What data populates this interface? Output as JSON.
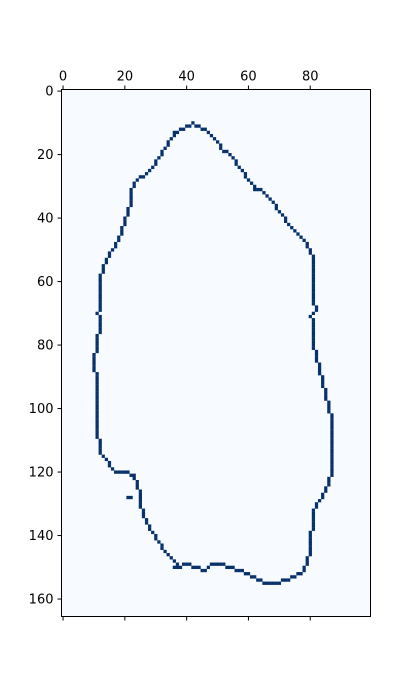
{
  "chart_data": {
    "type": "heatmap",
    "title": "",
    "xlabel": "",
    "ylabel": "",
    "x_axis_position": "top",
    "xlim": [
      -0.5,
      99.5
    ],
    "ylim": [
      165.5,
      -0.5
    ],
    "x_ticks": [
      0,
      20,
      40,
      60,
      80
    ],
    "x_tick_labels": [
      "0",
      "20",
      "40",
      "60",
      "80"
    ],
    "y_ticks": [
      0,
      20,
      40,
      60,
      80,
      100,
      120,
      140,
      160
    ],
    "y_tick_labels": [
      "0",
      "20",
      "40",
      "60",
      "80",
      "100",
      "120",
      "140",
      "160"
    ],
    "grid": false,
    "colormap": "Blues",
    "background_color": "#f7fbff",
    "contour_color": "#08306b",
    "value_range": [
      0,
      1
    ],
    "description_of_values": "binary mask: 1 on the closed outline, 0 elsewhere",
    "contour": [
      [
        42,
        10
      ],
      [
        39,
        12
      ],
      [
        36,
        13
      ],
      [
        35,
        15
      ],
      [
        33,
        18
      ],
      [
        31,
        21
      ],
      [
        29,
        24
      ],
      [
        27,
        26
      ],
      [
        25,
        27
      ],
      [
        23,
        29
      ],
      [
        22,
        32
      ],
      [
        22,
        35
      ],
      [
        21,
        38
      ],
      [
        20,
        41
      ],
      [
        19,
        44
      ],
      [
        18,
        47
      ],
      [
        16,
        50
      ],
      [
        14,
        53
      ],
      [
        13,
        56
      ],
      [
        12,
        59
      ],
      [
        12,
        62
      ],
      [
        12,
        65
      ],
      [
        12,
        68
      ],
      [
        11,
        70
      ],
      [
        12,
        72
      ],
      [
        12,
        75
      ],
      [
        11,
        78
      ],
      [
        11,
        81
      ],
      [
        10,
        84
      ],
      [
        10,
        87
      ],
      [
        11,
        90
      ],
      [
        11,
        94
      ],
      [
        11,
        98
      ],
      [
        11,
        102
      ],
      [
        11,
        105
      ],
      [
        11,
        108
      ],
      [
        12,
        111
      ],
      [
        12,
        114
      ],
      [
        14,
        116
      ],
      [
        16,
        119
      ],
      [
        18,
        120
      ],
      [
        21,
        120
      ],
      [
        23,
        121
      ],
      [
        24,
        124
      ],
      [
        25,
        127
      ],
      [
        25,
        130
      ],
      [
        26,
        133
      ],
      [
        27,
        136
      ],
      [
        29,
        139
      ],
      [
        31,
        142
      ],
      [
        33,
        145
      ],
      [
        36,
        148
      ],
      [
        37,
        150
      ],
      [
        40,
        149
      ],
      [
        44,
        150
      ],
      [
        46,
        151
      ],
      [
        48,
        149
      ],
      [
        51,
        149
      ],
      [
        54,
        150
      ],
      [
        57,
        151
      ],
      [
        60,
        152
      ],
      [
        63,
        154
      ],
      [
        66,
        155
      ],
      [
        69,
        155
      ],
      [
        72,
        154
      ],
      [
        75,
        153
      ],
      [
        78,
        151
      ],
      [
        79,
        148
      ],
      [
        80,
        144
      ],
      [
        80,
        140
      ],
      [
        81,
        136
      ],
      [
        81,
        132
      ],
      [
        83,
        129
      ],
      [
        85,
        126
      ],
      [
        86,
        123
      ],
      [
        87,
        120
      ],
      [
        87,
        116
      ],
      [
        87,
        112
      ],
      [
        87,
        108
      ],
      [
        87,
        104
      ],
      [
        86,
        100
      ],
      [
        85,
        96
      ],
      [
        84,
        92
      ],
      [
        83,
        88
      ],
      [
        82,
        84
      ],
      [
        81,
        80
      ],
      [
        81,
        76
      ],
      [
        81,
        73
      ],
      [
        80,
        71
      ],
      [
        82,
        69
      ],
      [
        81,
        66
      ],
      [
        81,
        62
      ],
      [
        81,
        58
      ],
      [
        81,
        54
      ],
      [
        80,
        50
      ],
      [
        78,
        47
      ],
      [
        76,
        45
      ],
      [
        74,
        43
      ],
      [
        72,
        41
      ],
      [
        71,
        39
      ],
      [
        69,
        37
      ],
      [
        68,
        35
      ],
      [
        66,
        33
      ],
      [
        64,
        31
      ],
      [
        62,
        31
      ],
      [
        61,
        29
      ],
      [
        59,
        27
      ],
      [
        58,
        25
      ],
      [
        56,
        23
      ],
      [
        55,
        21
      ],
      [
        53,
        19
      ],
      [
        51,
        18
      ],
      [
        50,
        16
      ],
      [
        48,
        14
      ],
      [
        46,
        12
      ],
      [
        44,
        11
      ],
      [
        42,
        10
      ]
    ],
    "extra_cells": [
      [
        21,
        128
      ],
      [
        22,
        128
      ],
      [
        37,
        149
      ],
      [
        36,
        150
      ]
    ]
  }
}
